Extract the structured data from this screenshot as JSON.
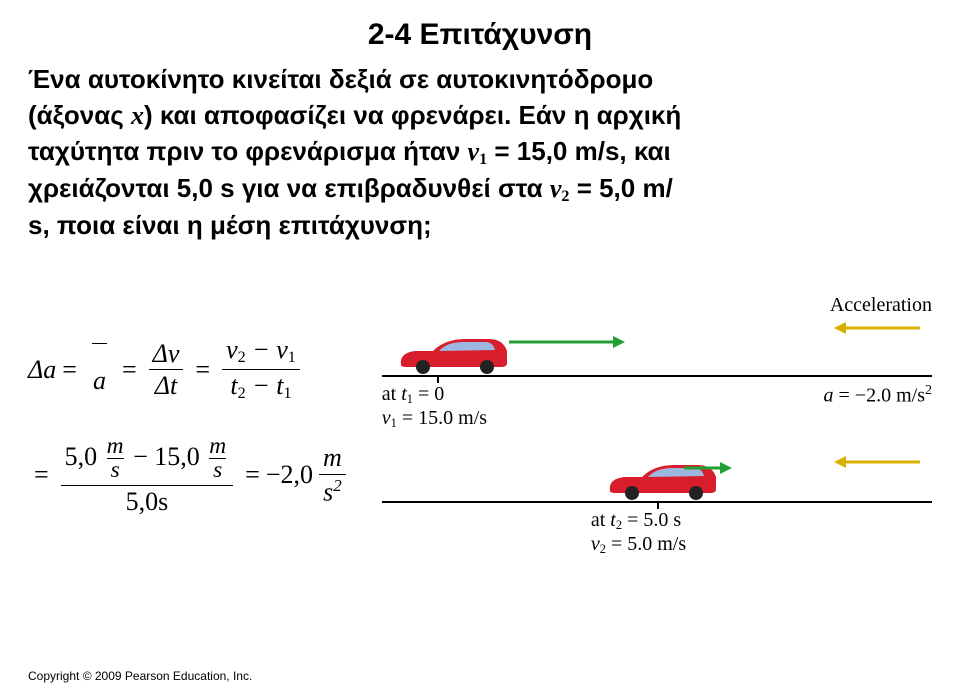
{
  "title": "2-4 Επιτάχυνση",
  "problem": {
    "line1": "Ένα αυτοκίνητο κινείται δεξιά σε αυτοκινητόδρομο",
    "line2a": "(άξονας ",
    "line2b": ") και αποφασίζει να φρενάρει. Εάν η αρχική",
    "line3a": "ταχύτητα πριν το φρενάρισμα ήταν ",
    "line3b": " = 15,0 m/s, και",
    "line4a": "χρειάζονται 5,0 s για να επιβραδυνθεί στα ",
    "line4b": " = 5,0 m/",
    "line5": "s, ποια είναι η μέση επιτάχυνση;",
    "x": "x",
    "v1": "v",
    "v1sub": "1",
    "v2": "v",
    "v2sub": "2"
  },
  "equation": {
    "delta_a": "Δ",
    "a": "a",
    "abar": "a",
    "eq": "=",
    "dv": "Δv",
    "dt": "Δt",
    "v2": "v",
    "v2s": "2",
    "v1": "v",
    "v1s": "1",
    "t2": "t",
    "t2s": "2",
    "t1": "t",
    "t1s": "1",
    "minus": "−",
    "num2top": "5,0",
    "num2top2": "15,0",
    "ms_m": "m",
    "ms_s": "s",
    "den2": "5,0s",
    "result": "−2,0",
    "unit_m": "m",
    "unit_s2": "s",
    "unit_exp": "2"
  },
  "diagram": {
    "accel_label": "Acceleration",
    "accel_color": "#d9b000",
    "car_body": "#d81e2c",
    "car_window": "#9db7e0",
    "car_wheel": "#222222",
    "scene1": {
      "car_left_pct": 2,
      "marker_pct": 10,
      "at": "at  ",
      "t": "t",
      "tsub": "1",
      "teq": " = 0",
      "v": "v",
      "vsub": "1",
      "veq": " = 15.0 m/s",
      "a": "a",
      "aeq": " = −2.0 m/s",
      "aexp": "2"
    },
    "scene2": {
      "car_left_pct": 40,
      "marker_pct": 50,
      "at": "at  ",
      "t": "t",
      "tsub": "2",
      "teq": " = 5.0 s",
      "v": "v",
      "vsub": "2",
      "veq": " = 5.0 m/s"
    }
  },
  "copyright": "Copyright © 2009 Pearson Education, Inc."
}
